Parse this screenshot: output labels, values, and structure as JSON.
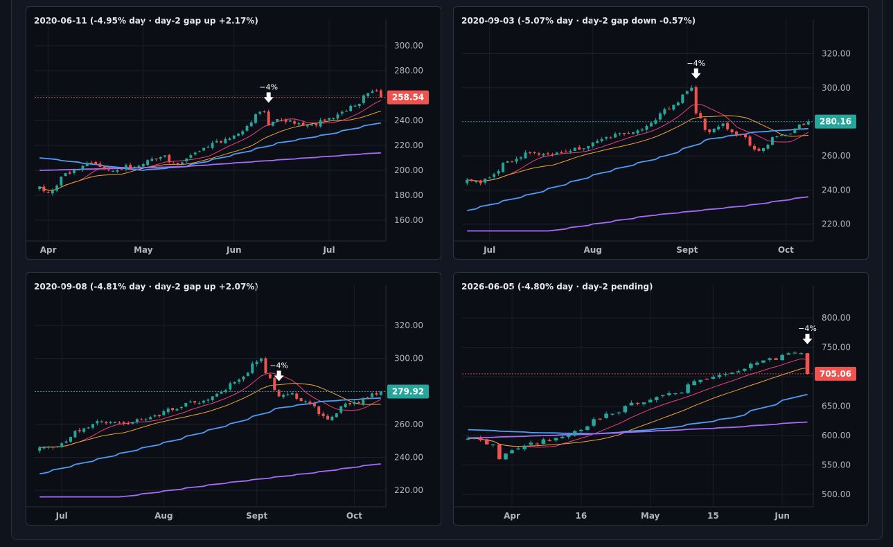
{
  "panels": [
    {
      "title": "2020-06-11 (-4.95% day · day-2 gap up +2.17%)",
      "yticks": [
        "300.00",
        "280.00",
        "260.00",
        "240.00",
        "220.00",
        "200.00",
        "180.00",
        "160.00"
      ],
      "xticks": [
        "Apr",
        "May",
        "Jun",
        "Jul"
      ],
      "price_label": "258.54",
      "annotation": "−4%"
    },
    {
      "title": "2020-09-03 (-5.07% day · day-2 gap down -0.57%)",
      "yticks": [
        "320.00",
        "300.00",
        "280.00",
        "260.00",
        "240.00",
        "220.00"
      ],
      "xticks": [
        "Jul",
        "Aug",
        "Sept",
        "Oct"
      ],
      "price_label": "280.16",
      "annotation": "−4%"
    },
    {
      "title": "2020-09-08 (-4.81% day · day-2 gap up +2.07%)",
      "yticks": [
        "320.00",
        "300.00",
        "280.00",
        "260.00",
        "240.00",
        "220.00"
      ],
      "xticks": [
        "Jul",
        "Aug",
        "Sept",
        "Oct"
      ],
      "price_label": "279.92",
      "annotation": "−4%"
    },
    {
      "title": "2026-06-05 (-4.80% day · day-2 pending)",
      "yticks": [
        "800.00",
        "750.00",
        "700.00",
        "650.00",
        "600.00",
        "550.00",
        "500.00"
      ],
      "xticks": [
        "Apr",
        "16",
        "May",
        "15",
        "Jun"
      ],
      "price_label": "705.06",
      "annotation": "−4%"
    }
  ],
  "chart_data": [
    {
      "type": "candlestick",
      "title": "2020-06-11 (-4.95% day · day-2 gap up +2.17%)",
      "ylim": [
        150,
        310
      ],
      "x_start": "2020-03-30",
      "x_end": "2020-07-17",
      "last_price": 258.54,
      "last_price_color": "#ef5350",
      "price_line": "dotted",
      "event_date": "2020-06-11",
      "keypoints": [
        [
          "2020-03-30",
          187
        ],
        [
          "2020-04-01",
          182
        ],
        [
          "2020-04-06",
          195
        ],
        [
          "2020-04-14",
          206
        ],
        [
          "2020-04-21",
          200
        ],
        [
          "2020-05-01",
          205
        ],
        [
          "2020-05-08",
          212
        ],
        [
          "2020-05-13",
          205
        ],
        [
          "2020-05-21",
          218
        ],
        [
          "2020-06-01",
          228
        ],
        [
          "2020-06-08",
          245
        ],
        [
          "2020-06-10",
          247
        ],
        [
          "2020-06-11",
          236
        ],
        [
          "2020-06-12",
          239
        ],
        [
          "2020-06-16",
          240
        ],
        [
          "2020-06-26",
          236
        ],
        [
          "2020-07-06",
          247
        ],
        [
          "2020-07-14",
          262
        ],
        [
          "2020-07-16",
          264
        ],
        [
          "2020-07-17",
          258.54
        ]
      ],
      "moving_averages": [
        {
          "color": "#ec407a",
          "period": 10
        },
        {
          "color": "#f2a33a",
          "period": 20
        },
        {
          "color": "#4f9cf5",
          "points": [
            [
              "2020-03-30",
              210
            ],
            [
              "2020-04-15",
              205
            ],
            [
              "2020-05-01",
              200
            ],
            [
              "2020-05-15",
              203
            ],
            [
              "2020-06-01",
              213
            ],
            [
              "2020-06-15",
              222
            ],
            [
              "2020-07-01",
              229
            ],
            [
              "2020-07-17",
              238
            ]
          ]
        },
        {
          "color": "#a56cf7",
          "points": [
            [
              "2020-03-30",
              200
            ],
            [
              "2020-05-15",
              203
            ],
            [
              "2020-07-17",
              214
            ]
          ]
        }
      ]
    },
    {
      "type": "candlestick",
      "title": "2020-09-03 (-5.07% day · day-2 gap down -0.57%)",
      "ylim": [
        215,
        332
      ],
      "x_start": "2020-06-24",
      "x_end": "2020-10-08",
      "last_price": 280.16,
      "last_price_color": "#26a69a",
      "price_line": "dotted",
      "event_date": "2020-09-03",
      "keypoints": [
        [
          "2020-06-24",
          246
        ],
        [
          "2020-06-29",
          244
        ],
        [
          "2020-07-06",
          256
        ],
        [
          "2020-07-13",
          262
        ],
        [
          "2020-07-20",
          261
        ],
        [
          "2020-07-27",
          263
        ],
        [
          "2020-08-03",
          268
        ],
        [
          "2020-08-10",
          273
        ],
        [
          "2020-08-17",
          275
        ],
        [
          "2020-08-24",
          285
        ],
        [
          "2020-09-01",
          298
        ],
        [
          "2020-09-02",
          300
        ],
        [
          "2020-09-03",
          285
        ],
        [
          "2020-09-08",
          274
        ],
        [
          "2020-09-11",
          279
        ],
        [
          "2020-09-18",
          271
        ],
        [
          "2020-09-23",
          263
        ],
        [
          "2020-09-28",
          271
        ],
        [
          "2020-10-05",
          276
        ],
        [
          "2020-10-08",
          280.16
        ]
      ],
      "moving_averages": [
        {
          "color": "#ec407a",
          "period": 10
        },
        {
          "color": "#f2a33a",
          "period": 20
        },
        {
          "color": "#4f9cf5",
          "points": [
            [
              "2020-06-24",
              228
            ],
            [
              "2020-07-15",
              238
            ],
            [
              "2020-08-05",
              250
            ],
            [
              "2020-08-25",
              260
            ],
            [
              "2020-09-08",
              270
            ],
            [
              "2020-09-22",
              274
            ],
            [
              "2020-10-08",
              276
            ]
          ]
        },
        {
          "color": "#a56cf7",
          "points": [
            [
              "2020-07-20",
              216
            ],
            [
              "2020-08-20",
              225
            ],
            [
              "2020-09-20",
              231
            ],
            [
              "2020-10-08",
              236
            ]
          ]
        }
      ]
    },
    {
      "type": "candlestick",
      "title": "2020-09-08 (-4.81% day · day-2 gap up +2.07%)",
      "ylim": [
        215,
        336
      ],
      "x_start": "2020-06-24",
      "x_end": "2020-10-09",
      "last_price": 279.92,
      "last_price_color": "#26a69a",
      "price_line": "dotted",
      "event_date": "2020-09-08",
      "keypoints": [
        [
          "2020-06-24",
          246
        ],
        [
          "2020-06-29",
          246
        ],
        [
          "2020-07-06",
          256
        ],
        [
          "2020-07-13",
          262
        ],
        [
          "2020-07-20",
          261
        ],
        [
          "2020-07-27",
          263
        ],
        [
          "2020-08-03",
          268
        ],
        [
          "2020-08-10",
          273
        ],
        [
          "2020-08-17",
          275
        ],
        [
          "2020-08-24",
          285
        ],
        [
          "2020-09-01",
          298
        ],
        [
          "2020-09-02",
          300
        ],
        [
          "2020-09-03",
          291
        ],
        [
          "2020-09-08",
          277
        ],
        [
          "2020-09-11",
          279
        ],
        [
          "2020-09-18",
          271
        ],
        [
          "2020-09-23",
          263
        ],
        [
          "2020-09-28",
          271
        ],
        [
          "2020-10-05",
          276
        ],
        [
          "2020-10-09",
          279.92
        ]
      ],
      "moving_averages": [
        {
          "color": "#ec407a",
          "period": 10
        },
        {
          "color": "#f2a33a",
          "period": 20
        },
        {
          "color": "#4f9cf5",
          "points": [
            [
              "2020-06-24",
              230
            ],
            [
              "2020-07-15",
              240
            ],
            [
              "2020-08-05",
              250
            ],
            [
              "2020-08-25",
              261
            ],
            [
              "2020-09-08",
              270
            ],
            [
              "2020-09-22",
              274
            ],
            [
              "2020-10-09",
              276
            ]
          ]
        },
        {
          "color": "#a56cf7",
          "points": [
            [
              "2020-07-20",
              216
            ],
            [
              "2020-08-20",
              224
            ],
            [
              "2020-09-20",
              231
            ],
            [
              "2020-10-09",
              236
            ]
          ]
        }
      ]
    },
    {
      "type": "candlestick",
      "title": "2026-06-05 (-4.80% day · day-2 pending)",
      "ylim": [
        493,
        832
      ],
      "x_start": "2026-03-23",
      "x_end": "2026-06-05",
      "last_price": 705.06,
      "last_price_color": "#ef5350",
      "price_line": "dotted",
      "event_date": "2026-06-05",
      "keypoints": [
        [
          "2026-03-23",
          595
        ],
        [
          "2026-03-27",
          585
        ],
        [
          "2026-03-30",
          560
        ],
        [
          "2026-04-01",
          575
        ],
        [
          "2026-04-06",
          588
        ],
        [
          "2026-04-13",
          598
        ],
        [
          "2026-04-20",
          628
        ],
        [
          "2026-04-27",
          650
        ],
        [
          "2026-05-01",
          661
        ],
        [
          "2026-05-08",
          673
        ],
        [
          "2026-05-11",
          687
        ],
        [
          "2026-05-15",
          700
        ],
        [
          "2026-05-20",
          707
        ],
        [
          "2026-05-25",
          722
        ],
        [
          "2026-06-01",
          737
        ],
        [
          "2026-06-04",
          740
        ],
        [
          "2026-06-05",
          705.06
        ]
      ],
      "moving_averages": [
        {
          "color": "#ec407a",
          "period": 10
        },
        {
          "color": "#f2a33a",
          "period": 20
        },
        {
          "color": "#4f9cf5",
          "points": [
            [
              "2026-03-23",
              610
            ],
            [
              "2026-04-06",
              605
            ],
            [
              "2026-04-20",
              603
            ],
            [
              "2026-05-05",
              612
            ],
            [
              "2026-05-20",
              630
            ],
            [
              "2026-06-05",
              670
            ]
          ]
        },
        {
          "color": "#a56cf7",
          "points": [
            [
              "2026-03-23",
              596
            ],
            [
              "2026-04-20",
              603
            ],
            [
              "2026-05-20",
              614
            ],
            [
              "2026-06-05",
              623
            ]
          ]
        }
      ]
    }
  ]
}
